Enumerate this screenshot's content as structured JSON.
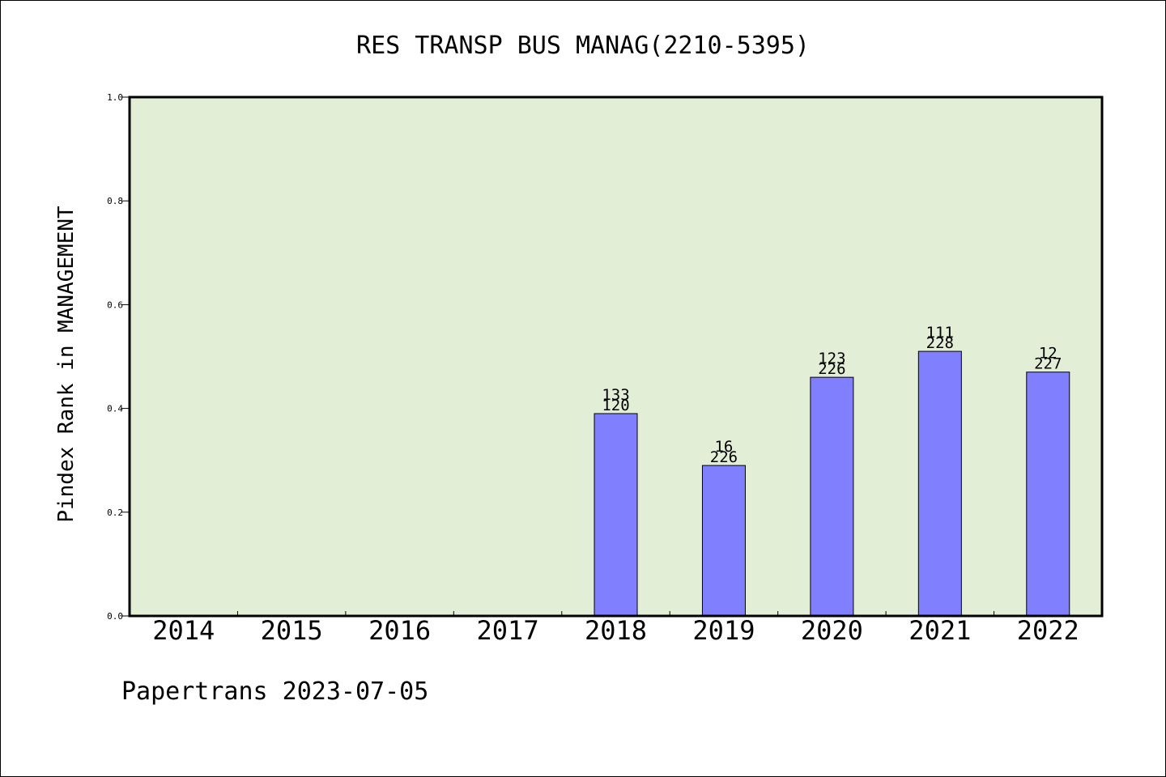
{
  "chart_data": {
    "type": "bar",
    "title": "RES TRANSP BUS MANAG(2210-5395)",
    "xlabel": "",
    "ylabel": "Pindex Rank in MANAGEMENT",
    "categories": [
      "2014",
      "2015",
      "2016",
      "2017",
      "2018",
      "2019",
      "2020",
      "2021",
      "2022"
    ],
    "values": [
      null,
      null,
      null,
      null,
      0.39,
      0.29,
      0.46,
      0.51,
      0.47
    ],
    "bar_labels_top": [
      "",
      "",
      "",
      "",
      "133",
      "16",
      "123",
      "111",
      "12"
    ],
    "bar_labels_bottom": [
      "",
      "",
      "",
      "",
      "120",
      "226",
      "226",
      "228",
      "227"
    ],
    "ylim": [
      0,
      1.0
    ],
    "yticks": [
      "0.0",
      "0.2",
      "0.4",
      "0.6",
      "0.8",
      "1.0"
    ],
    "grid": false,
    "legend": "none",
    "colors": {
      "bar_fill": "#8080ff",
      "plot_background": "#e2efd6",
      "axis": "#000000"
    }
  },
  "footer": {
    "text": "Papertrans 2023-07-05"
  }
}
